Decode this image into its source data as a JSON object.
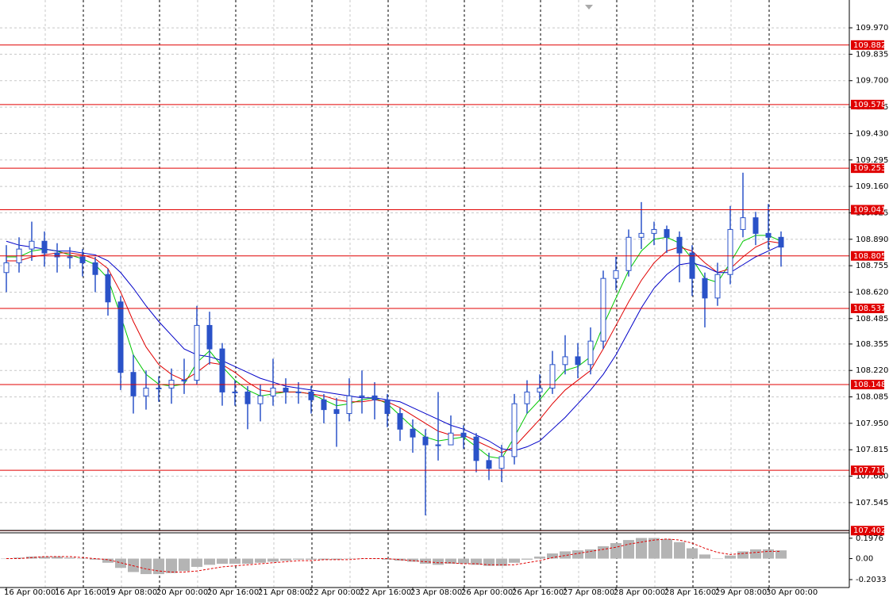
{
  "chart_data": [
    {
      "type": "candlestick",
      "categories": [
        "16 Apr 00:00",
        null,
        null,
        null,
        "16 Apr 16:00",
        null,
        null,
        null,
        "19 Apr 08:00",
        null,
        null,
        null,
        "20 Apr 00:00",
        null,
        null,
        null,
        "20 Apr 16:00",
        null,
        null,
        null,
        "21 Apr 08:00",
        null,
        null,
        null,
        "22 Apr 00:00",
        null,
        null,
        null,
        "22 Apr 16:00",
        null,
        null,
        null,
        "23 Apr 08:00",
        null,
        null,
        null,
        "26 Apr 00:00",
        null,
        null,
        null,
        "26 Apr 16:00",
        null,
        null,
        null,
        "27 Apr 08:00",
        null,
        null,
        null,
        "28 Apr 00:00",
        null,
        null,
        null,
        "28 Apr 16:00",
        null,
        null,
        null,
        "29 Apr 08:00",
        null,
        null,
        null,
        "30 Apr 00:00",
        null
      ],
      "open": [
        108.72,
        108.77,
        108.84,
        108.88,
        108.82,
        108.8,
        108.8,
        108.77,
        108.71,
        108.57,
        108.21,
        108.09,
        108.13,
        108.13,
        108.17,
        108.17,
        108.45,
        108.33,
        108.11,
        108.11,
        108.05,
        108.09,
        108.13,
        108.11,
        108.11,
        108.07,
        108.02,
        108.0,
        108.09,
        108.09,
        108.07,
        108.0,
        107.92,
        107.88,
        107.84,
        107.84,
        107.9,
        107.88,
        107.76,
        107.72,
        107.78,
        108.05,
        108.11,
        108.13,
        108.25,
        108.29,
        108.25,
        108.37,
        108.69,
        108.73,
        108.9,
        108.92,
        108.94,
        108.9,
        108.82,
        108.69,
        108.59,
        108.71,
        108.94,
        109.0,
        108.92,
        108.9
      ],
      "high": [
        108.86,
        108.9,
        108.98,
        108.93,
        108.87,
        108.85,
        108.84,
        108.8,
        108.74,
        108.6,
        108.3,
        108.22,
        108.19,
        108.23,
        108.28,
        108.55,
        108.52,
        108.36,
        108.17,
        108.14,
        108.15,
        108.28,
        108.18,
        108.16,
        108.14,
        108.1,
        108.08,
        108.18,
        108.22,
        108.16,
        108.1,
        108.03,
        107.97,
        107.92,
        108.11,
        107.99,
        107.94,
        107.9,
        107.8,
        107.84,
        108.1,
        108.17,
        108.2,
        108.32,
        108.4,
        108.36,
        108.44,
        108.73,
        108.8,
        108.94,
        109.08,
        108.98,
        108.96,
        108.93,
        108.86,
        108.72,
        108.77,
        109.06,
        109.23,
        109.03,
        109.07,
        108.93
      ],
      "low": [
        108.62,
        108.72,
        108.78,
        108.75,
        108.72,
        108.74,
        108.7,
        108.62,
        108.5,
        108.12,
        108.0,
        108.02,
        108.06,
        108.05,
        108.1,
        108.15,
        108.25,
        108.04,
        108.04,
        107.92,
        107.96,
        108.04,
        108.05,
        108.05,
        108.0,
        107.95,
        107.83,
        107.96,
        108.0,
        107.97,
        107.93,
        107.86,
        107.8,
        107.48,
        107.76,
        107.84,
        107.82,
        107.7,
        107.66,
        107.65,
        107.74,
        108.0,
        108.07,
        108.1,
        108.2,
        108.18,
        108.2,
        108.33,
        108.63,
        108.7,
        108.84,
        108.86,
        108.82,
        108.67,
        108.6,
        108.44,
        108.55,
        108.66,
        108.9,
        108.86,
        108.84,
        108.75
      ],
      "close": [
        108.77,
        108.84,
        108.88,
        108.82,
        108.8,
        108.8,
        108.77,
        108.71,
        108.57,
        108.21,
        108.09,
        108.13,
        108.13,
        108.17,
        108.17,
        108.45,
        108.33,
        108.11,
        108.11,
        108.05,
        108.09,
        108.13,
        108.11,
        108.11,
        108.07,
        108.02,
        108.0,
        108.09,
        108.09,
        108.07,
        108.0,
        107.92,
        107.88,
        107.84,
        107.84,
        107.9,
        107.88,
        107.76,
        107.72,
        107.78,
        108.05,
        108.11,
        108.13,
        108.25,
        108.29,
        108.25,
        108.37,
        108.69,
        108.73,
        108.9,
        108.92,
        108.94,
        108.9,
        108.82,
        108.69,
        108.59,
        108.71,
        108.94,
        109.0,
        108.92,
        108.9,
        108.85
      ],
      "color": "#2a52c8",
      "series": [
        {
          "color": "#00c800",
          "values": [
            108.8,
            108.8,
            108.83,
            108.84,
            108.83,
            108.81,
            108.79,
            108.76,
            108.69,
            108.5,
            108.3,
            108.2,
            108.15,
            108.14,
            108.15,
            108.26,
            108.32,
            108.24,
            108.17,
            108.12,
            108.09,
            108.1,
            108.11,
            108.11,
            108.1,
            108.07,
            108.04,
            108.05,
            108.07,
            108.08,
            108.05,
            107.99,
            107.93,
            107.88,
            107.86,
            107.87,
            107.88,
            107.83,
            107.78,
            107.77,
            107.88,
            108.0,
            108.07,
            108.15,
            108.22,
            108.24,
            108.29,
            108.45,
            108.59,
            108.73,
            108.83,
            108.89,
            108.9,
            108.87,
            108.79,
            108.69,
            108.67,
            108.77,
            108.88,
            108.91,
            108.91,
            108.88
          ]
        },
        {
          "color": "#e00000",
          "values": [
            108.78,
            108.78,
            108.8,
            108.81,
            108.82,
            108.82,
            108.81,
            108.79,
            108.74,
            108.62,
            108.47,
            108.34,
            108.25,
            108.2,
            108.17,
            108.21,
            108.26,
            108.25,
            108.21,
            108.16,
            108.12,
            108.11,
            108.11,
            108.11,
            108.1,
            108.09,
            108.07,
            108.06,
            108.06,
            108.07,
            108.06,
            108.03,
            107.99,
            107.95,
            107.91,
            107.89,
            107.89,
            107.86,
            107.83,
            107.8,
            107.83,
            107.9,
            107.97,
            108.05,
            108.12,
            108.17,
            108.22,
            108.33,
            108.45,
            108.57,
            108.68,
            108.77,
            108.83,
            108.85,
            108.83,
            108.77,
            108.72,
            108.74,
            108.8,
            108.85,
            108.88,
            108.87
          ]
        },
        {
          "color": "#0000c8",
          "values": [
            108.88,
            108.86,
            108.85,
            108.84,
            108.83,
            108.83,
            108.82,
            108.81,
            108.78,
            108.72,
            108.64,
            108.55,
            108.47,
            108.4,
            108.33,
            108.3,
            108.29,
            108.27,
            108.24,
            108.21,
            108.18,
            108.16,
            108.14,
            108.13,
            108.12,
            108.11,
            108.1,
            108.09,
            108.08,
            108.08,
            108.07,
            108.06,
            108.03,
            108.0,
            107.97,
            107.94,
            107.92,
            107.89,
            107.86,
            107.82,
            107.81,
            107.83,
            107.86,
            107.92,
            107.98,
            108.05,
            108.12,
            108.2,
            108.3,
            108.42,
            108.54,
            108.64,
            108.71,
            108.76,
            108.77,
            108.75,
            108.72,
            108.72,
            108.76,
            108.8,
            108.83,
            108.86
          ]
        }
      ],
      "ylim": [
        107.407,
        110.112
      ],
      "yticks": [
        {
          "value": 109.97,
          "label": "109.970"
        },
        109.835,
        {
          "value": 109.7,
          "label": "109.700"
        },
        109.565,
        {
          "value": 109.43,
          "label": "109.430"
        },
        109.295,
        {
          "value": 109.16,
          "label": "109.160"
        },
        109.025,
        {
          "value": 108.89,
          "label": "108.890"
        },
        108.755,
        {
          "value": 108.62,
          "label": "108.620"
        },
        108.485,
        108.355,
        {
          "value": 108.22,
          "label": "108.220"
        },
        108.085,
        {
          "value": 107.95,
          "label": "107.950"
        },
        107.815,
        {
          "value": 107.68,
          "label": "107.680"
        },
        107.545
      ],
      "levels": [
        109.882,
        109.578,
        109.253,
        109.041,
        108.805,
        108.537,
        108.148,
        {
          "value": 107.71,
          "label": "107.710"
        },
        107.402
      ],
      "level_color": "#e00000",
      "grid": true
    },
    {
      "type": "bar",
      "values": [
        0.0,
        0.01,
        0.02,
        0.02,
        0.02,
        0.01,
        0.0,
        -0.01,
        -0.04,
        -0.09,
        -0.13,
        -0.15,
        -0.15,
        -0.14,
        -0.12,
        -0.08,
        -0.06,
        -0.05,
        -0.05,
        -0.05,
        -0.04,
        -0.03,
        -0.02,
        -0.01,
        -0.01,
        -0.01,
        -0.01,
        0.0,
        0.0,
        0.0,
        -0.01,
        -0.02,
        -0.03,
        -0.05,
        -0.06,
        -0.05,
        -0.05,
        -0.06,
        -0.07,
        -0.07,
        -0.04,
        -0.01,
        0.02,
        0.05,
        0.07,
        0.08,
        0.09,
        0.12,
        0.15,
        0.18,
        0.2,
        0.2,
        0.19,
        0.16,
        0.1,
        0.04,
        0.0,
        0.03,
        0.07,
        0.09,
        0.09,
        0.08
      ],
      "color": "#b4b4b4",
      "signal": {
        "color": "#e00000",
        "values": [
          0.0,
          0.0,
          0.01,
          0.02,
          0.02,
          0.02,
          0.01,
          0.0,
          -0.01,
          -0.04,
          -0.07,
          -0.1,
          -0.12,
          -0.13,
          -0.13,
          -0.12,
          -0.1,
          -0.08,
          -0.07,
          -0.06,
          -0.05,
          -0.04,
          -0.03,
          -0.02,
          -0.02,
          -0.01,
          -0.01,
          -0.01,
          0.0,
          0.0,
          0.0,
          -0.01,
          -0.02,
          -0.03,
          -0.04,
          -0.04,
          -0.05,
          -0.05,
          -0.06,
          -0.06,
          -0.06,
          -0.04,
          -0.02,
          0.01,
          0.03,
          0.05,
          0.07,
          0.09,
          0.11,
          0.14,
          0.16,
          0.18,
          0.19,
          0.18,
          0.15,
          0.1,
          0.06,
          0.04,
          0.05,
          0.06,
          0.07,
          0.07
        ]
      },
      "ylim": [
        -0.28,
        0.25
      ],
      "yticks": [
        0.1976,
        {
          "value": 0,
          "label": "0.00"
        },
        -0.2033
      ]
    }
  ]
}
